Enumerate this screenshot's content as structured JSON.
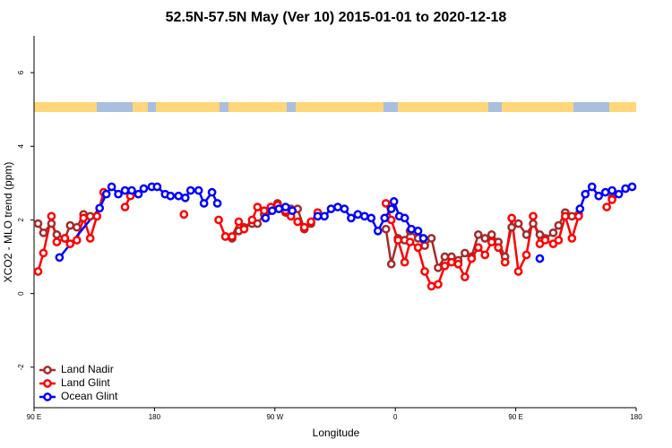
{
  "chart_data": {
    "type": "line",
    "title": "52.5N-57.5N May (Ver 10)   2015-01-01 to 2020-12-18",
    "x_label": "Longitude",
    "y_label": "XCO2 - MLO trend (ppm)",
    "xlim": [
      90,
      540
    ],
    "xticks": [
      {
        "value": 90,
        "label": "90 E"
      },
      {
        "value": 180,
        "label": "180"
      },
      {
        "value": 270,
        "label": "90 W"
      },
      {
        "value": 360,
        "label": "0"
      },
      {
        "value": 450,
        "label": "90 E"
      },
      {
        "value": 540,
        "label": "180"
      }
    ],
    "ylim": [
      -3.1,
      7
    ],
    "yticks": [
      -2,
      0,
      2,
      4,
      6
    ],
    "grid": false,
    "legend": "bottom left",
    "series": [
      {
        "name": "Land Nadir",
        "color": "#a52a2a",
        "x": [
          93,
          97,
          103,
          107,
          113,
          117,
          122,
          127,
          132,
          137,
          null,
          233,
          238,
          243,
          247,
          253,
          257,
          262,
          267,
          272,
          278,
          282,
          287,
          292,
          297,
          null,
          353,
          357,
          362,
          367,
          371,
          377,
          382,
          387,
          392,
          397,
          402,
          407,
          412,
          417,
          422,
          427,
          432,
          437,
          442,
          447,
          452,
          458,
          463,
          468,
          472,
          478,
          482,
          487,
          492,
          497,
          null,
          522
        ],
        "values": [
          1.9,
          1.65,
          1.9,
          1.6,
          1.5,
          1.85,
          1.8,
          2.15,
          2.1,
          2.1,
          null,
          1.55,
          1.5,
          1.7,
          1.8,
          1.9,
          1.9,
          2.15,
          2.25,
          2.45,
          2.2,
          2.3,
          2.3,
          1.75,
          1.9,
          null,
          1.75,
          0.8,
          1.5,
          1.45,
          1.7,
          1.5,
          1.3,
          1.5,
          0.7,
          1.0,
          1.0,
          0.9,
          1.1,
          1.0,
          1.6,
          1.5,
          1.6,
          1.4,
          1.0,
          1.8,
          1.9,
          1.6,
          1.9,
          1.6,
          1.5,
          1.65,
          1.85,
          2.2,
          2.1,
          2.15,
          null,
          2.6
        ]
      },
      {
        "name": "Land Glint",
        "color": "#ff0000",
        "x": [
          93,
          97,
          103,
          107,
          113,
          117,
          122,
          127,
          132,
          137,
          142,
          null,
          158,
          162,
          null,
          202,
          null,
          228,
          233,
          238,
          243,
          247,
          253,
          257,
          262,
          267,
          272,
          278,
          282,
          287,
          292,
          297,
          302,
          null,
          353,
          357,
          362,
          367,
          371,
          377,
          382,
          387,
          392,
          397,
          402,
          407,
          412,
          417,
          422,
          427,
          432,
          437,
          442,
          447,
          452,
          458,
          463,
          468,
          472,
          478,
          482,
          487,
          492,
          497,
          null,
          518,
          522
        ],
        "values": [
          0.6,
          1.1,
          2.1,
          1.4,
          1.5,
          1.35,
          1.45,
          2.05,
          1.5,
          2.1,
          2.75,
          null,
          2.35,
          2.65,
          null,
          2.15,
          null,
          2.0,
          1.55,
          1.55,
          1.95,
          1.75,
          2.0,
          2.35,
          2.25,
          2.35,
          2.4,
          2.25,
          2.1,
          1.95,
          1.8,
          1.95,
          2.2,
          null,
          2.45,
          2.0,
          1.45,
          0.85,
          1.4,
          1.25,
          0.6,
          0.2,
          0.25,
          0.75,
          0.85,
          0.8,
          0.45,
          0.95,
          1.25,
          1.05,
          1.4,
          1.25,
          0.85,
          2.05,
          0.6,
          1.05,
          2.1,
          1.35,
          1.45,
          1.35,
          1.45,
          2.1,
          1.5,
          2.1,
          null,
          2.35,
          2.55
        ]
      },
      {
        "name": "Ocean Glint",
        "color": "#0000ff",
        "x": [
          109,
          139,
          144,
          148,
          153,
          158,
          163,
          168,
          172,
          178,
          182,
          188,
          192,
          198,
          203,
          207,
          213,
          217,
          223,
          227,
          null,
          263,
          268,
          273,
          278,
          283,
          null,
          302,
          307,
          312,
          317,
          322,
          327,
          332,
          337,
          342,
          347,
          352,
          357,
          359,
          363,
          367,
          372,
          377,
          381,
          null,
          468,
          null,
          498,
          502,
          507,
          512,
          517,
          522,
          527,
          532,
          537
        ],
        "values": [
          0.98,
          2.32,
          2.7,
          2.9,
          2.7,
          2.8,
          2.8,
          2.7,
          2.85,
          2.9,
          2.9,
          2.7,
          2.65,
          2.65,
          2.6,
          2.8,
          2.8,
          2.45,
          2.75,
          2.45,
          null,
          2.05,
          2.25,
          2.3,
          2.35,
          2.25,
          null,
          2.1,
          2.1,
          2.3,
          2.35,
          2.3,
          2.05,
          2.15,
          2.1,
          2.05,
          1.7,
          2.05,
          2.3,
          2.5,
          2.1,
          2.05,
          1.75,
          1.7,
          1.5,
          null,
          0.95,
          null,
          2.3,
          2.7,
          2.9,
          2.65,
          2.75,
          2.8,
          2.7,
          2.85,
          2.9
        ]
      }
    ]
  }
}
